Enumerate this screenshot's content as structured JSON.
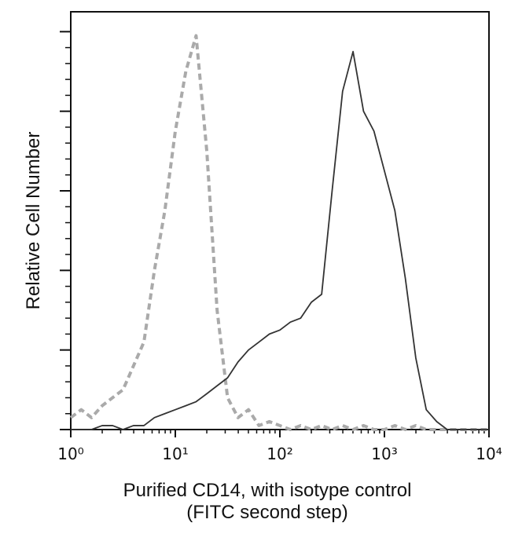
{
  "chart_data": {
    "type": "line",
    "ylabel": "Relative Cell Number",
    "xlabel": [
      "Purified CD14, with isotype control",
      "(FITC second step)"
    ],
    "log_x": true,
    "xlim": [
      1,
      10000
    ],
    "xticks": [
      {
        "value": 1,
        "label": "10⁰"
      },
      {
        "value": 10,
        "label": "10¹"
      },
      {
        "value": 100,
        "label": "10²"
      },
      {
        "value": 1000,
        "label": "10³"
      },
      {
        "value": 10000,
        "label": "10⁴"
      }
    ],
    "ylim": [
      0,
      105
    ],
    "yticks": [
      0,
      20,
      40,
      60,
      80,
      100
    ],
    "x": [
      1,
      1.26,
      1.58,
      2,
      2.51,
      3.16,
      3.98,
      5.01,
      6.31,
      7.94,
      10,
      12.6,
      15.8,
      20,
      25.1,
      31.6,
      39.8,
      50.1,
      63.1,
      79.4,
      100,
      126,
      158,
      200,
      251,
      316,
      398,
      501,
      631,
      794,
      1000,
      1259,
      1585,
      1995,
      2512,
      3162,
      3981,
      5012,
      6310,
      7943,
      10000
    ],
    "series": [
      {
        "color": "#aaaaaa",
        "dashed": true,
        "values": [
          3,
          5,
          3,
          6,
          8,
          10,
          16,
          22,
          40,
          55,
          75,
          90,
          99,
          70,
          30,
          8,
          3,
          5,
          1,
          2,
          1,
          0,
          1,
          0,
          1,
          0,
          1,
          0,
          1,
          0,
          0,
          1,
          0,
          1,
          0,
          0,
          0,
          0,
          0,
          0,
          0
        ]
      },
      {
        "color": "#333333",
        "dashed": false,
        "values": [
          0,
          0,
          0,
          1,
          1,
          0,
          1,
          1,
          3,
          4,
          5,
          6,
          7,
          9,
          11,
          13,
          17,
          20,
          22,
          24,
          25,
          27,
          28,
          32,
          34,
          60,
          85,
          95,
          80,
          75,
          65,
          55,
          38,
          18,
          5,
          2,
          0,
          0,
          0,
          0,
          0
        ]
      }
    ]
  }
}
